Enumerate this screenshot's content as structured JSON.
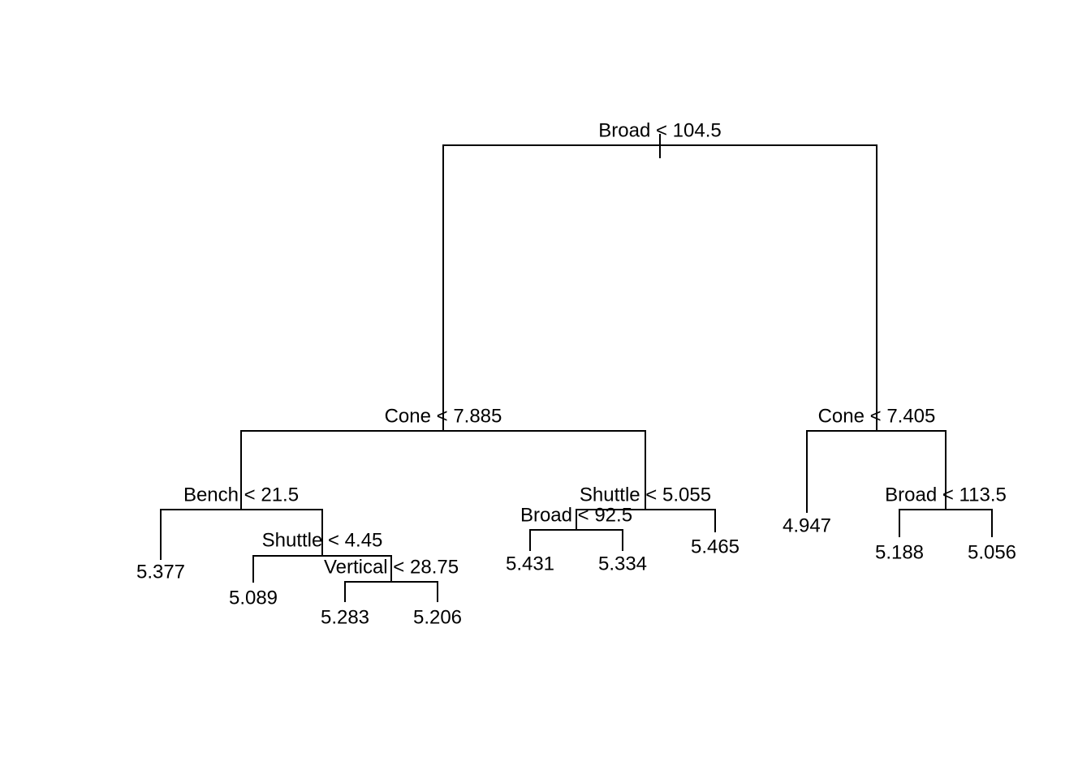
{
  "nodes": [
    {
      "label": "Broad < 104.5"
    },
    {
      "label": "Cone < 7.885"
    },
    {
      "label": "Bench < 21.5"
    },
    {
      "label": "Shuttle < 4.45"
    },
    {
      "label": "Vertical < 28.75"
    },
    {
      "label": "Shuttle < 5.055"
    },
    {
      "label": "Broad < 92.5"
    },
    {
      "label": "Cone < 7.405"
    },
    {
      "label": "Broad < 113.5"
    }
  ],
  "leaves": [
    {
      "value": 5.377
    },
    {
      "value": 5.089
    },
    {
      "value": 5.283
    },
    {
      "value": 5.206
    },
    {
      "value": 5.431
    },
    {
      "value": 5.334
    },
    {
      "value": 5.465
    },
    {
      "value": 4.947
    },
    {
      "value": 5.188
    },
    {
      "value": 5.056
    }
  ]
}
